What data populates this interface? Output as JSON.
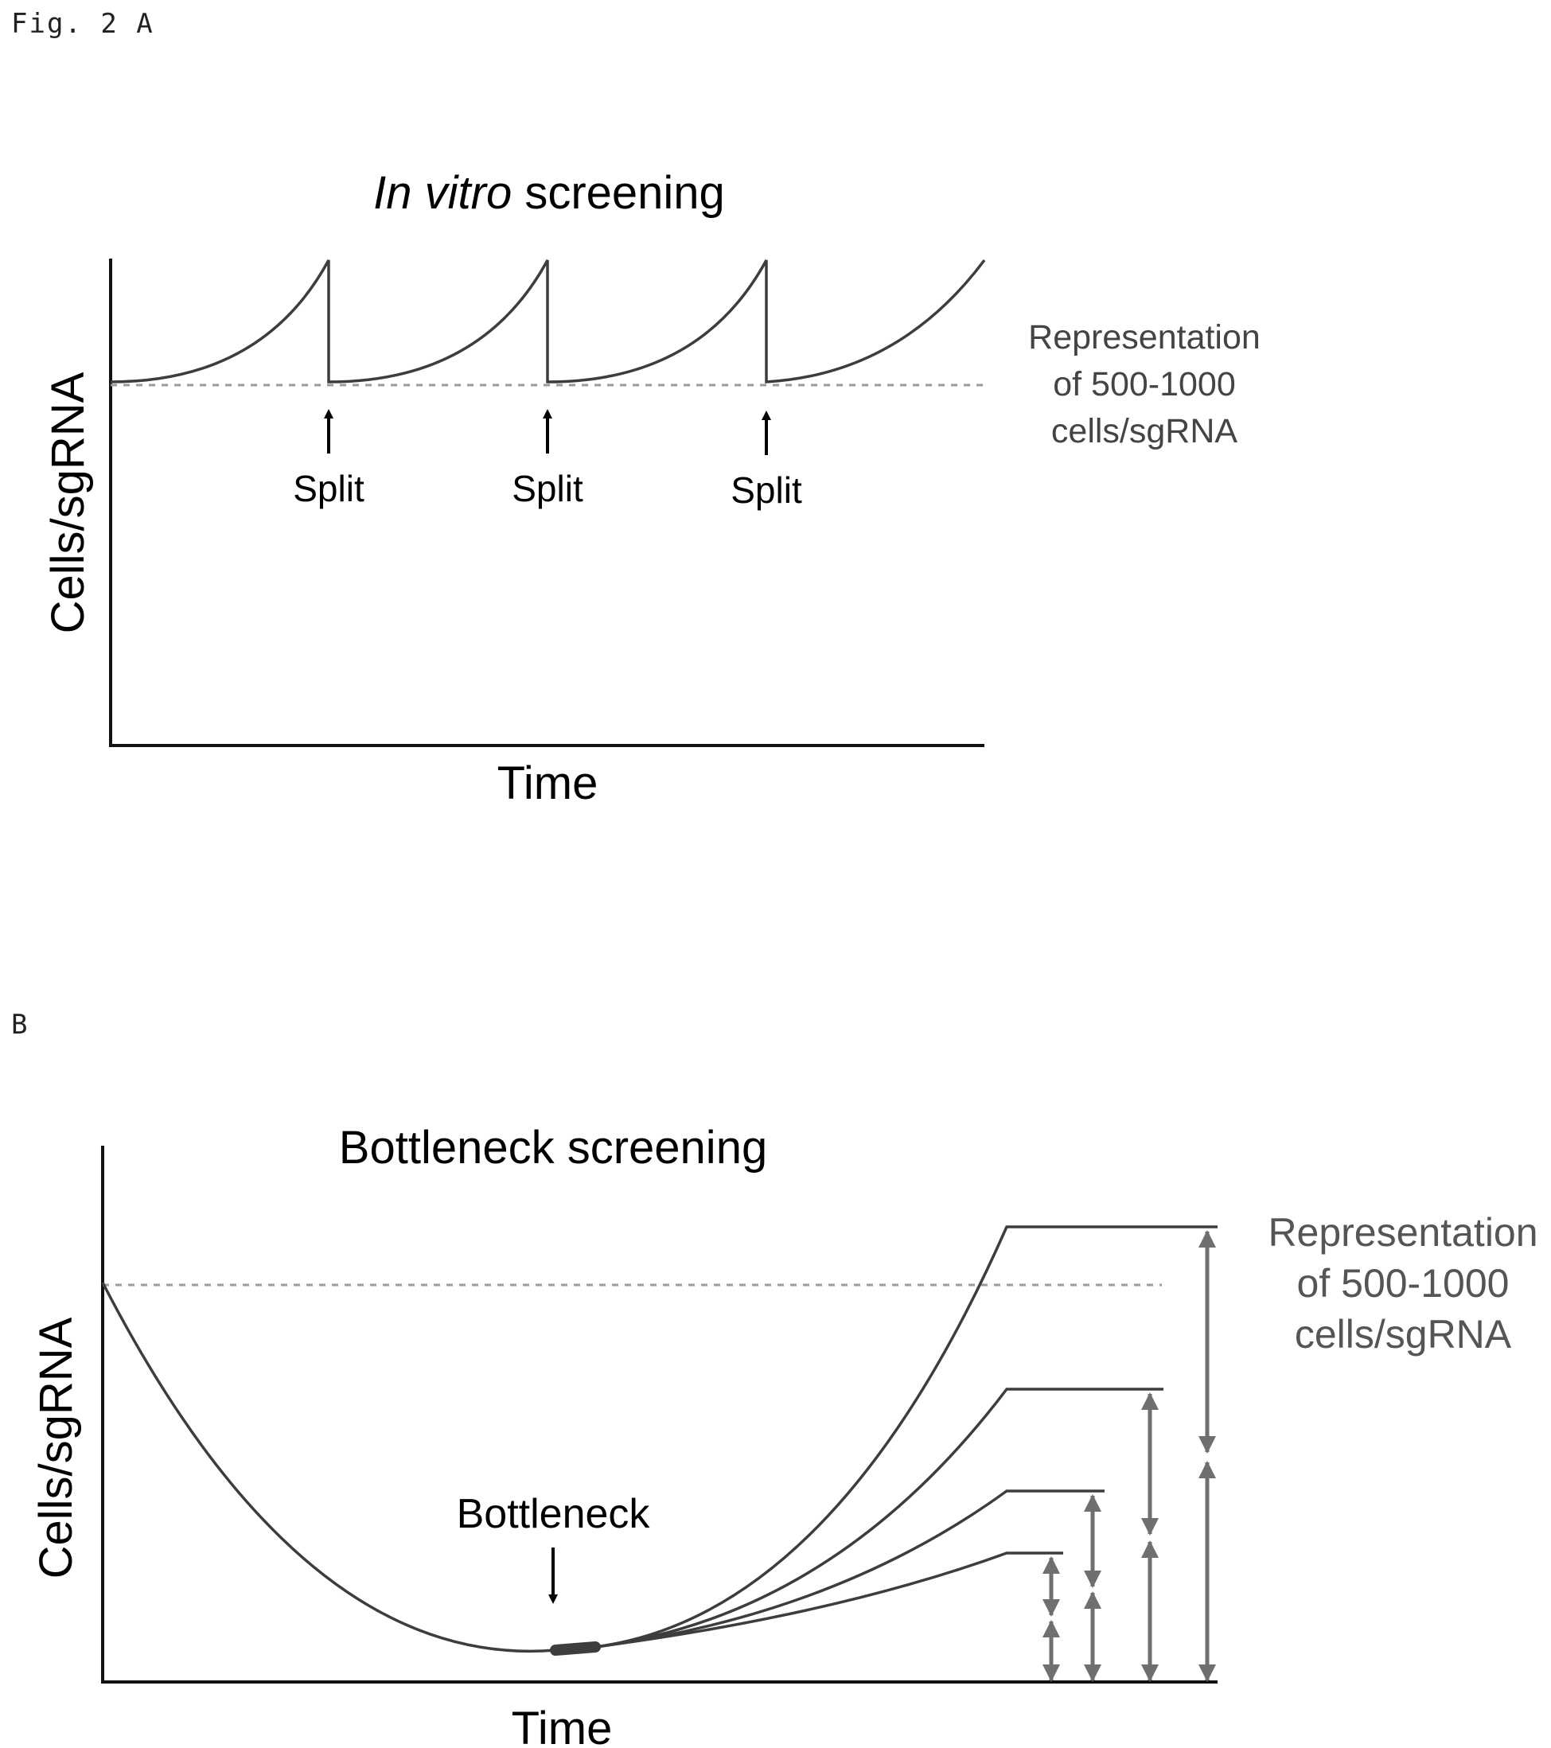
{
  "figure": {
    "label_a": "Fig. 2 A",
    "label_b": "B"
  },
  "panel_a": {
    "title_italic": "In vitro",
    "title_rest": " screening",
    "y_label": "Cells/sgRNA",
    "x_label": "Time",
    "split_labels": [
      "Split",
      "Split",
      "Split"
    ],
    "representation_lines": [
      "Representation",
      "of 500-1000",
      "cells/sgRNA"
    ]
  },
  "panel_b": {
    "title": "Bottleneck screening",
    "y_label": "Cells/sgRNA",
    "x_label": "Time",
    "bottleneck_label": "Bottleneck",
    "representation_lines": [
      "Representation",
      "of 500-1000",
      "cells/sgRNA"
    ]
  },
  "colors": {
    "axis": "#111111",
    "curve": "#3d3d3d",
    "dashed": "#9a9a9a",
    "gray_arrow": "#6f6f6f",
    "arrow": "#000000"
  }
}
